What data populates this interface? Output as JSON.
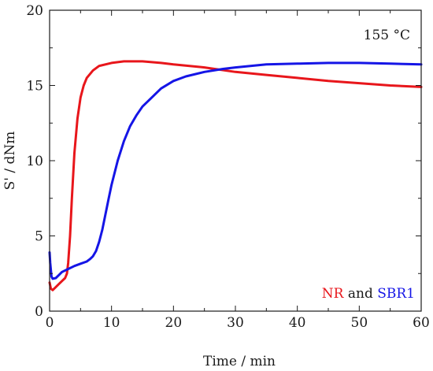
{
  "chart_data": {
    "type": "line",
    "title": "",
    "xlabel": "Time / min",
    "ylabel": "S' / dNm",
    "xlim": [
      0,
      60
    ],
    "ylim": [
      0,
      20
    ],
    "x_ticks": [
      0,
      10,
      20,
      30,
      40,
      50,
      60
    ],
    "y_ticks": [
      0,
      5,
      10,
      15,
      20
    ],
    "grid": false,
    "annotations": {
      "temperature": "155 °C",
      "legend_nr": "NR",
      "legend_and": " and ",
      "legend_sbr": "SBR1"
    },
    "series": [
      {
        "name": "NR",
        "color": "#e8161b",
        "points": [
          [
            0,
            1.9
          ],
          [
            0.2,
            1.5
          ],
          [
            0.5,
            1.4
          ],
          [
            1.0,
            1.6
          ],
          [
            1.5,
            1.8
          ],
          [
            2.0,
            2.0
          ],
          [
            2.5,
            2.2
          ],
          [
            2.8,
            2.5
          ],
          [
            3.0,
            3.2
          ],
          [
            3.3,
            5.0
          ],
          [
            3.6,
            7.5
          ],
          [
            4.0,
            10.5
          ],
          [
            4.5,
            12.8
          ],
          [
            5.0,
            14.2
          ],
          [
            5.5,
            15.0
          ],
          [
            6.0,
            15.5
          ],
          [
            7.0,
            16.0
          ],
          [
            8.0,
            16.3
          ],
          [
            10.0,
            16.5
          ],
          [
            12.0,
            16.6
          ],
          [
            15.0,
            16.6
          ],
          [
            18.0,
            16.5
          ],
          [
            20.0,
            16.4
          ],
          [
            25.0,
            16.2
          ],
          [
            30.0,
            15.9
          ],
          [
            35.0,
            15.7
          ],
          [
            40.0,
            15.5
          ],
          [
            45.0,
            15.3
          ],
          [
            50.0,
            15.15
          ],
          [
            55.0,
            15.0
          ],
          [
            60.0,
            14.9
          ]
        ]
      },
      {
        "name": "SBR1",
        "color": "#1515e6",
        "points": [
          [
            0,
            3.9
          ],
          [
            0.1,
            3.2
          ],
          [
            0.3,
            2.3
          ],
          [
            0.5,
            2.15
          ],
          [
            1.0,
            2.2
          ],
          [
            1.5,
            2.4
          ],
          [
            2.0,
            2.6
          ],
          [
            3.0,
            2.8
          ],
          [
            4.0,
            3.0
          ],
          [
            5.0,
            3.15
          ],
          [
            6.0,
            3.3
          ],
          [
            6.5,
            3.45
          ],
          [
            7.0,
            3.65
          ],
          [
            7.5,
            4.0
          ],
          [
            8.0,
            4.6
          ],
          [
            8.5,
            5.4
          ],
          [
            9.0,
            6.4
          ],
          [
            9.5,
            7.4
          ],
          [
            10.0,
            8.4
          ],
          [
            11.0,
            10.0
          ],
          [
            12.0,
            11.3
          ],
          [
            13.0,
            12.3
          ],
          [
            14.0,
            13.0
          ],
          [
            15.0,
            13.6
          ],
          [
            16.0,
            14.0
          ],
          [
            18.0,
            14.8
          ],
          [
            20.0,
            15.3
          ],
          [
            22.0,
            15.6
          ],
          [
            25.0,
            15.9
          ],
          [
            28.0,
            16.1
          ],
          [
            30.0,
            16.2
          ],
          [
            35.0,
            16.4
          ],
          [
            40.0,
            16.45
          ],
          [
            45.0,
            16.5
          ],
          [
            50.0,
            16.5
          ],
          [
            55.0,
            16.45
          ],
          [
            60.0,
            16.4
          ]
        ]
      }
    ]
  }
}
